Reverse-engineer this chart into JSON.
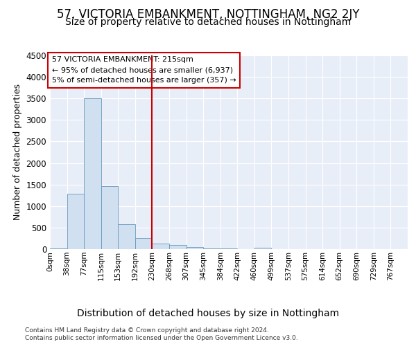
{
  "title": "57, VICTORIA EMBANKMENT, NOTTINGHAM, NG2 2JY",
  "subtitle": "Size of property relative to detached houses in Nottingham",
  "xlabel": "Distribution of detached houses by size in Nottingham",
  "ylabel": "Number of detached properties",
  "footer_line1": "Contains HM Land Registry data © Crown copyright and database right 2024.",
  "footer_line2": "Contains public sector information licensed under the Open Government Licence v3.0.",
  "bin_labels": [
    "0sqm",
    "38sqm",
    "77sqm",
    "115sqm",
    "153sqm",
    "192sqm",
    "230sqm",
    "268sqm",
    "307sqm",
    "345sqm",
    "384sqm",
    "422sqm",
    "460sqm",
    "499sqm",
    "537sqm",
    "575sqm",
    "614sqm",
    "652sqm",
    "690sqm",
    "729sqm",
    "767sqm"
  ],
  "bar_values": [
    10,
    1280,
    3500,
    1470,
    580,
    250,
    130,
    100,
    50,
    10,
    10,
    0,
    30,
    0,
    0,
    0,
    0,
    0,
    0,
    0,
    0
  ],
  "bar_color": "#d0e0f0",
  "bar_edgecolor": "#6699bb",
  "vline_x": 6.0,
  "vline_color": "#cc0000",
  "annotation_text": "57 VICTORIA EMBANKMENT: 215sqm\n← 95% of detached houses are smaller (6,937)\n5% of semi-detached houses are larger (357) →",
  "annotation_box_color": "#cc0000",
  "annotation_text_color": "#000000",
  "ylim": [
    0,
    4500
  ],
  "yticks": [
    0,
    500,
    1000,
    1500,
    2000,
    2500,
    3000,
    3500,
    4000,
    4500
  ],
  "bg_color": "#ffffff",
  "plot_bg_color": "#e8eef8",
  "title_fontsize": 12,
  "subtitle_fontsize": 10,
  "grid_color": "#ffffff",
  "ylabel_fontsize": 9,
  "xlabel_fontsize": 10
}
